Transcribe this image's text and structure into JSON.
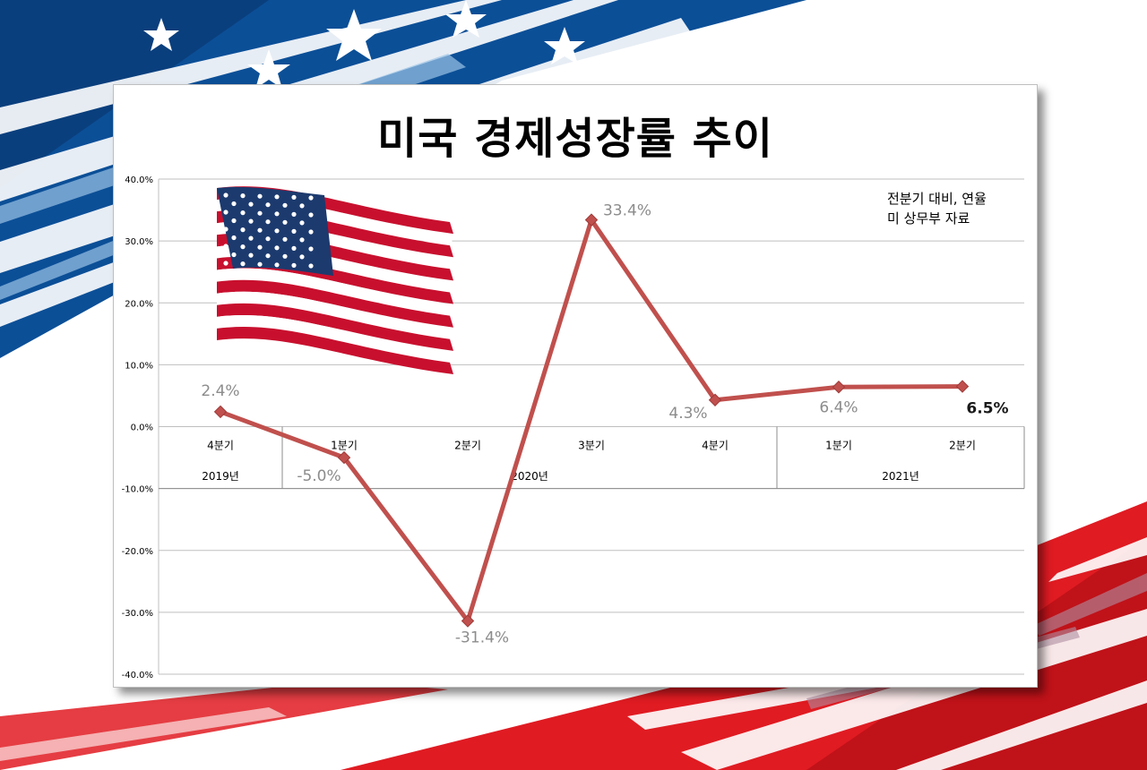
{
  "colors": {
    "line": "#c0504d",
    "marker": "#c0504d",
    "grid": "#bfbfbf",
    "label": "#8c8c8c",
    "flag_blue": "#1c3a6e",
    "flag_red": "#c8102e",
    "bg_blue": "#0b4f97",
    "bg_red": "#e01b22"
  },
  "images": {
    "background": "us-flag-stripes-background",
    "flag": "waving-us-flag-icon"
  },
  "chart_data": {
    "type": "line",
    "title": "미국 경제성장률 추이",
    "notes": [
      "전분기 대비, 연율",
      "미 상무부 자료"
    ],
    "categories": [
      "4분기",
      "1분기",
      "2분기",
      "3분기",
      "4분기",
      "1분기",
      "2분기"
    ],
    "groups": [
      {
        "label": "2019년",
        "span": 1
      },
      {
        "label": "2020년",
        "span": 4
      },
      {
        "label": "2021년",
        "span": 2
      }
    ],
    "values": [
      2.4,
      -5.0,
      -31.4,
      33.4,
      4.3,
      6.4,
      6.5
    ],
    "value_labels": [
      "2.4%",
      "-5.0%",
      "-31.4%",
      "33.4%",
      "4.3%",
      "6.4%",
      "6.5%"
    ],
    "ylim": [
      -40,
      40
    ],
    "y_ticks": [
      40,
      30,
      20,
      10,
      0,
      -10,
      -20,
      -30,
      -40
    ],
    "y_tick_labels": [
      "40.0%",
      "30.0%",
      "20.0%",
      "10.0%",
      "0.0%",
      "-10.0%",
      "-20.0%",
      "-30.0%",
      "-40.0%"
    ],
    "xlabel": "",
    "ylabel": "",
    "grid": true,
    "legend": "none"
  }
}
